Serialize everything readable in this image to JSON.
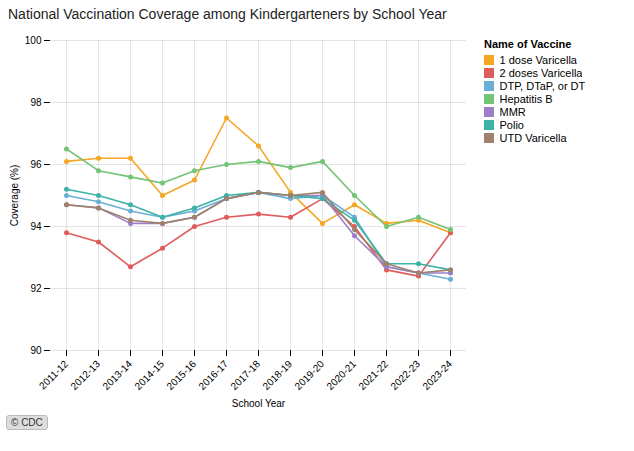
{
  "chart_data": {
    "type": "line",
    "title": "National Vaccination Coverage among Kindergarteners by School Year",
    "xlabel": "School Year",
    "ylabel": "Coverage (%)",
    "categories": [
      "2011-12",
      "2012-13",
      "2013-14",
      "2014-15",
      "2015-16",
      "2016-17",
      "2017-18",
      "2018-19",
      "2019-20",
      "2020-21",
      "2021-22",
      "2022-23",
      "2023-24"
    ],
    "series": [
      {
        "name": "1 dose Varicella",
        "color": "#F5A623",
        "values": [
          96.1,
          96.2,
          96.2,
          95.0,
          95.5,
          97.5,
          96.6,
          95.1,
          94.1,
          94.7,
          94.1,
          94.2,
          93.8
        ]
      },
      {
        "name": "2 doses Varicella",
        "color": "#E05C5C",
        "values": [
          93.8,
          93.5,
          92.7,
          93.3,
          94.0,
          94.3,
          94.4,
          94.3,
          94.9,
          94.0,
          92.6,
          92.4,
          93.8
        ]
      },
      {
        "name": "DTP, DTaP, or DT",
        "color": "#6BAED6",
        "values": [
          95.0,
          94.8,
          94.5,
          94.3,
          94.5,
          94.9,
          95.1,
          94.9,
          95.0,
          94.3,
          92.7,
          92.5,
          92.3
        ]
      },
      {
        "name": "Hepatitis B",
        "color": "#74C476",
        "values": [
          96.5,
          95.8,
          95.6,
          95.4,
          95.8,
          96.0,
          96.1,
          95.9,
          96.1,
          95.0,
          94.0,
          94.3,
          93.9
        ]
      },
      {
        "name": "MMR",
        "color": "#9E7EC8",
        "values": [
          94.7,
          94.6,
          94.1,
          94.1,
          94.3,
          94.9,
          95.1,
          95.0,
          95.0,
          93.7,
          92.7,
          92.5,
          92.5
        ]
      },
      {
        "name": "Polio",
        "color": "#3CB3A6",
        "values": [
          95.2,
          95.0,
          94.7,
          94.3,
          94.6,
          95.0,
          95.1,
          95.0,
          94.9,
          94.2,
          92.8,
          92.8,
          92.6
        ]
      },
      {
        "name": "UTD Varicella",
        "color": "#A0816B",
        "values": [
          94.7,
          94.6,
          94.2,
          94.1,
          94.3,
          94.9,
          95.1,
          95.0,
          95.1,
          93.9,
          92.8,
          92.5,
          92.6
        ]
      }
    ],
    "ylim": [
      90,
      100
    ],
    "yticks": [
      90,
      92,
      94,
      96,
      98,
      100
    ],
    "grid": true,
    "marker": "circle",
    "legend": "right",
    "legend_title": "Name of Vaccine",
    "annotations": [
      "© CDC"
    ]
  }
}
